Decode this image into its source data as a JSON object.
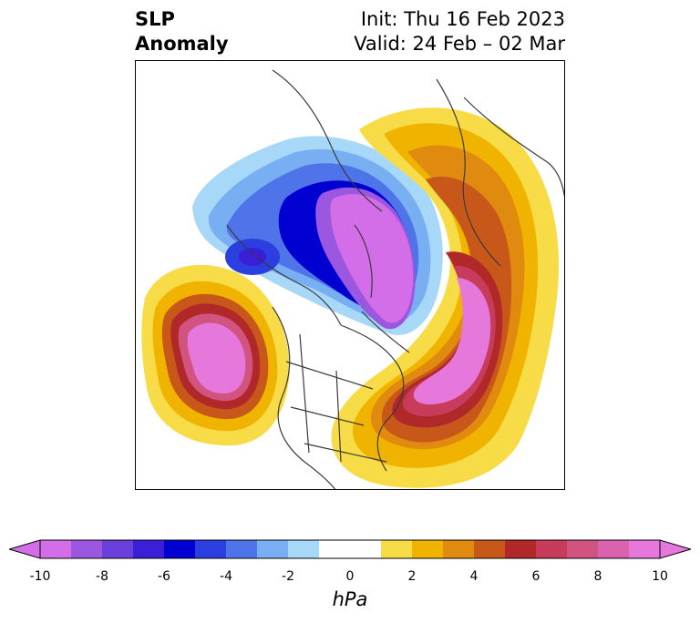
{
  "title": {
    "left_line1": "SLP",
    "left_line2": "Anomaly",
    "right_line1": "Init: Thu 16 Feb 2023",
    "right_line2": "Valid: 24 Feb – 02 Mar"
  },
  "colorbar": {
    "label": "hPa",
    "min": -10,
    "max": 10,
    "ticks": [
      "-10",
      "-8",
      "-6",
      "-4",
      "-2",
      "0",
      "2",
      "4",
      "6",
      "8",
      "10"
    ],
    "colors": [
      "#d36ee8",
      "#9b57e0",
      "#6a3fdc",
      "#3a1ed8",
      "#0000d0",
      "#2b3ee0",
      "#4f73e8",
      "#78aef2",
      "#a8d8f8",
      "#ffffff",
      "#ffffff",
      "#f7dc48",
      "#f0b400",
      "#e08a10",
      "#c8581a",
      "#b02828",
      "#c63c5a",
      "#d25280",
      "#db62ae",
      "#e678dc"
    ],
    "extend": "both"
  },
  "map": {
    "variable": "Sea-level pressure anomaly",
    "projection": "north-polar stereographic",
    "colors": {
      "strong_negative": "#d36ee8",
      "negative": "#0000d0",
      "weak_negative": "#a8d8f8",
      "weak_positive": "#f7dc48",
      "positive": "#e08a10",
      "strong_positive": "#e678dc",
      "coastline": "#3a3a3a"
    }
  }
}
